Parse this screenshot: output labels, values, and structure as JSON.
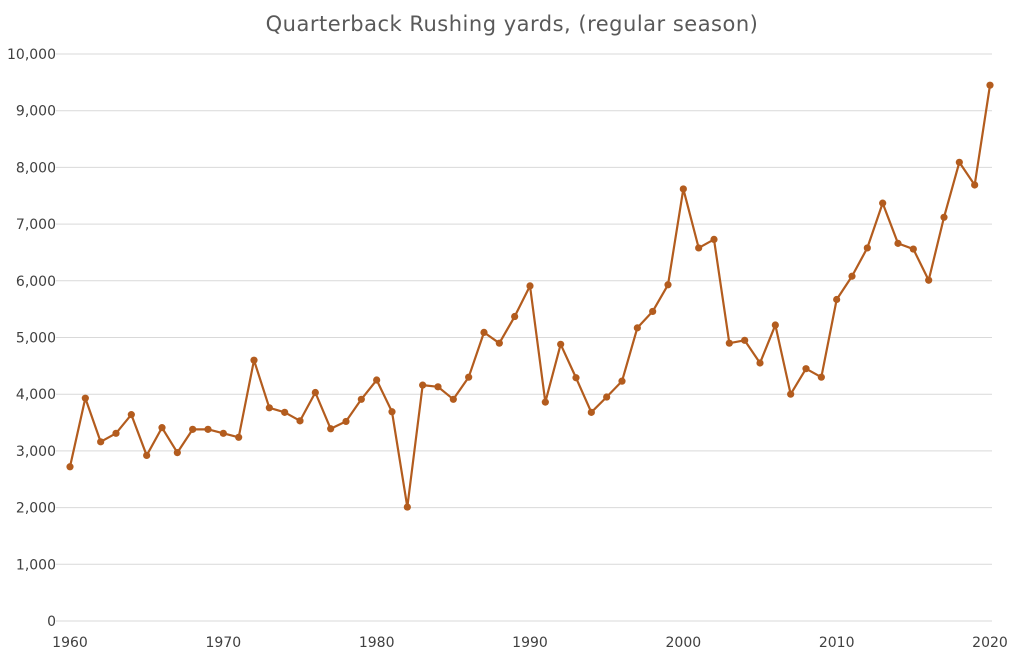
{
  "chart_data": {
    "type": "line",
    "title": "Quarterback Rushing yards, (regular season)",
    "xlabel": "",
    "ylabel": "",
    "xlim": [
      1960,
      2020
    ],
    "ylim": [
      0,
      10000
    ],
    "x_ticks": [
      1960,
      1970,
      1980,
      1990,
      2000,
      2010,
      2020
    ],
    "x_tick_labels": [
      "1960",
      "1970",
      "1980",
      "1990",
      "2000",
      "2010",
      "2020"
    ],
    "y_ticks": [
      0,
      1000,
      2000,
      3000,
      4000,
      5000,
      6000,
      7000,
      8000,
      9000,
      10000
    ],
    "y_tick_labels": [
      "0",
      "1,000",
      "2,000",
      "3,000",
      "4,000",
      "5,000",
      "6,000",
      "7,000",
      "8,000",
      "9,000",
      "10,000"
    ],
    "grid": "horizontal",
    "legend": "none",
    "color": "#b35c1e",
    "x": [
      1960,
      1961,
      1962,
      1963,
      1964,
      1965,
      1966,
      1967,
      1968,
      1969,
      1970,
      1971,
      1972,
      1973,
      1974,
      1975,
      1976,
      1977,
      1978,
      1979,
      1980,
      1981,
      1982,
      1983,
      1984,
      1985,
      1986,
      1987,
      1988,
      1989,
      1990,
      1991,
      1992,
      1993,
      1994,
      1995,
      1996,
      1997,
      1998,
      1999,
      2000,
      2001,
      2002,
      2003,
      2004,
      2005,
      2006,
      2007,
      2008,
      2009,
      2010,
      2011,
      2012,
      2013,
      2014,
      2015,
      2016,
      2017,
      2018,
      2019,
      2020
    ],
    "y": [
      2720,
      3930,
      3160,
      3310,
      3640,
      2920,
      3410,
      2970,
      3380,
      3380,
      3310,
      3240,
      4600,
      3760,
      3680,
      3530,
      4030,
      3390,
      3520,
      3910,
      4250,
      3690,
      2010,
      4160,
      4130,
      3910,
      4300,
      5090,
      4900,
      5370,
      5910,
      3860,
      4880,
      4290,
      3680,
      3950,
      4230,
      5170,
      5460,
      5930,
      7620,
      6580,
      6730,
      4900,
      4950,
      4550,
      5220,
      4000,
      4450,
      4300,
      5670,
      6080,
      6580,
      7370,
      6660,
      6560,
      6010,
      7120,
      8090,
      7690,
      9450
    ]
  }
}
